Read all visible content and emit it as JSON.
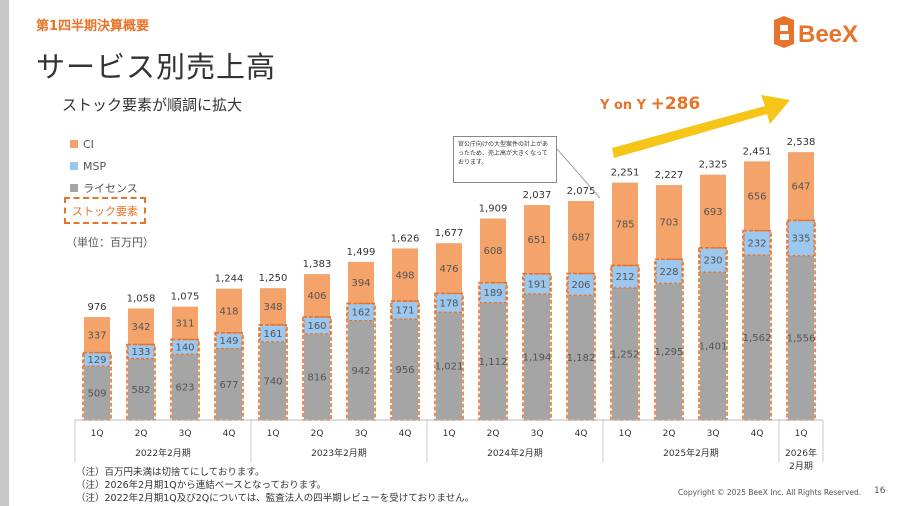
{
  "header": {
    "section_label": "第1四半期決算概要",
    "page_title": "サービス別売上高",
    "subtitle": "ストック要素が順調に拡大",
    "logo_text": "BeeX"
  },
  "legend": {
    "items": [
      "CI",
      "MSP",
      "ライセンス"
    ],
    "stock_label": "ストック要素",
    "unit": "（単位：百万円）"
  },
  "callout": {
    "text": "官公庁向けの大型案件の計上があったため、売上高が大きくなっております。"
  },
  "yoy": {
    "label": "Y on Y",
    "value": "+286"
  },
  "colors": {
    "ci": "#f4a36b",
    "msp": "#9cc7ee",
    "license": "#a5a5a5",
    "accent": "#e8732a",
    "arrow": "#f5c518"
  },
  "chart_data": {
    "type": "bar",
    "stacked": true,
    "categories": [
      "1Q",
      "2Q",
      "3Q",
      "4Q",
      "1Q",
      "2Q",
      "3Q",
      "4Q",
      "1Q",
      "2Q",
      "3Q",
      "4Q",
      "1Q",
      "2Q",
      "3Q",
      "4Q",
      "1Q"
    ],
    "groups": [
      {
        "label": "2022年2月期",
        "start": 0,
        "end": 3
      },
      {
        "label": "2023年2月期",
        "start": 4,
        "end": 7
      },
      {
        "label": "2024年2月期",
        "start": 8,
        "end": 11
      },
      {
        "label": "2025年2月期",
        "start": 12,
        "end": 15
      },
      {
        "label": "2026年\n2月期",
        "start": 16,
        "end": 16
      }
    ],
    "series": [
      {
        "name": "ライセンス",
        "values": [
          509,
          582,
          623,
          677,
          740,
          816,
          942,
          956,
          1021,
          1112,
          1194,
          1182,
          1252,
          1295,
          1401,
          1562,
          1556
        ]
      },
      {
        "name": "MSP",
        "values": [
          129,
          133,
          140,
          149,
          161,
          160,
          162,
          171,
          178,
          189,
          191,
          206,
          212,
          228,
          230,
          232,
          335
        ]
      },
      {
        "name": "CI",
        "values": [
          337,
          342,
          311,
          418,
          348,
          406,
          394,
          498,
          476,
          608,
          651,
          687,
          785,
          703,
          693,
          656,
          647
        ]
      }
    ],
    "totals": [
      976,
      1058,
      1075,
      1244,
      1250,
      1383,
      1499,
      1626,
      1677,
      1909,
      2037,
      2075,
      2251,
      2227,
      2325,
      2451,
      2538
    ]
  },
  "notes": [
    "（注）百万円未満は切捨てにしております。",
    "（注）2026年2月期1Qから連結ベースとなっております。",
    "（注）2022年2月期1Q及び2Qについては、監査法人の四半期レビューを受けておりません。"
  ],
  "footer": {
    "copyright": "Copyright © 2025 BeeX Inc. All Rights Reserved.",
    "page_number": "16"
  }
}
